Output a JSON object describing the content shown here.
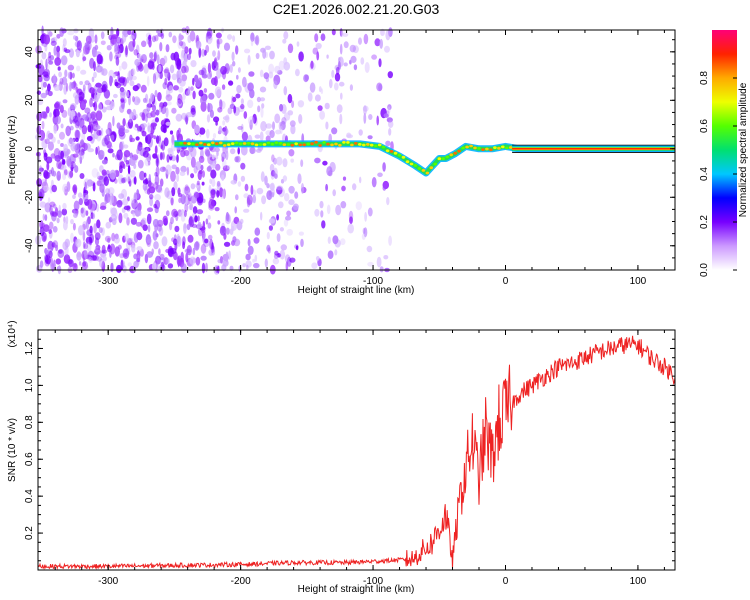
{
  "title": "C2E1.2026.002.21.20.G03",
  "chart_data": [
    {
      "type": "heatmap",
      "xlabel": "Height of straight line (km)",
      "ylabel": "Frequency (Hz)",
      "xlim": [
        -353,
        128
      ],
      "ylim": [
        -50,
        49
      ],
      "x_ticks": [
        -300,
        -200,
        -100,
        0,
        100
      ],
      "x_tick_labels": [
        "-300",
        "-200",
        "-100",
        "0",
        "100"
      ],
      "y_ticks": [
        -40,
        -20,
        0,
        20,
        40
      ],
      "y_tick_labels": [
        "-40",
        "-20",
        "0",
        "20",
        "40"
      ],
      "colorbar": {
        "label": "Normalized spectral amplitude",
        "range": [
          0,
          1
        ],
        "ticks": [
          0.0,
          0.2,
          0.4,
          0.6,
          0.8
        ],
        "tick_labels": [
          "0.0",
          "0.2",
          "0.4",
          "0.6",
          "0.8"
        ],
        "colormap": [
          "#ffffff",
          "#cc99ff",
          "#7700ff",
          "#0000ff",
          "#00c8ff",
          "#00e070",
          "#55ff00",
          "#eeff00",
          "#ffaa00",
          "#ff2200",
          "#ff0077"
        ]
      },
      "ridge": {
        "x": [
          -250,
          -200,
          -150,
          -110,
          -95,
          -80,
          -68,
          -60,
          -55,
          -50,
          -45,
          -38,
          -30,
          -20,
          -10,
          0,
          10,
          128
        ],
        "y": [
          2,
          2,
          2,
          2,
          1,
          -3,
          -7,
          -10,
          -7,
          -4,
          -4,
          -2,
          1,
          0,
          0,
          1,
          0,
          0
        ]
      },
      "noise_region": {
        "x": [
          -353,
          -85
        ],
        "y": [
          -50,
          49
        ]
      }
    },
    {
      "type": "line",
      "xlabel": "Height of straight line (km)",
      "ylabel": "SNR (10 * v/v)",
      "y_multiplier_label": "(x10⁴)",
      "xlim": [
        -353,
        128
      ],
      "ylim": [
        0,
        1.3
      ],
      "x_ticks": [
        -300,
        -200,
        -100,
        0,
        100
      ],
      "x_tick_labels": [
        "-300",
        "-200",
        "-100",
        "0",
        "100"
      ],
      "y_ticks": [
        0.2,
        0.4,
        0.6,
        0.8,
        1.0,
        1.2
      ],
      "y_tick_labels": [
        "0.2",
        "0.4",
        "0.6",
        "0.8",
        "1.0",
        "1.2"
      ],
      "series": [
        {
          "color": "#ee2222",
          "x": [
            -353,
            -300,
            -250,
            -200,
            -160,
            -120,
            -90,
            -70,
            -55,
            -45,
            -40,
            -35,
            -30,
            -25,
            -20,
            -15,
            -10,
            -5,
            0,
            10,
            20,
            30,
            40,
            50,
            60,
            70,
            80,
            90,
            100,
            110,
            120,
            128
          ],
          "y": [
            0.02,
            0.02,
            0.025,
            0.03,
            0.04,
            0.04,
            0.05,
            0.06,
            0.15,
            0.3,
            0.05,
            0.35,
            0.55,
            0.7,
            0.5,
            0.75,
            0.6,
            0.8,
            0.85,
            0.95,
            1.0,
            1.05,
            1.1,
            1.12,
            1.15,
            1.18,
            1.2,
            1.22,
            1.22,
            1.15,
            1.1,
            1.05
          ]
        }
      ]
    }
  ]
}
